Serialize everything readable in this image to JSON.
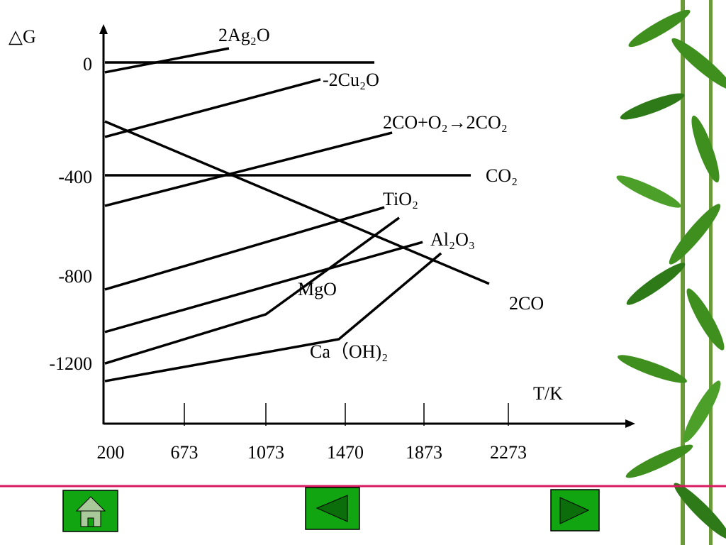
{
  "chart_data": {
    "type": "line",
    "y_label": "△G",
    "x_label": "T/K",
    "xticks": [
      200,
      673,
      1073,
      1470,
      1873,
      2273
    ],
    "yticks": [
      0,
      -400,
      -800,
      -1200
    ],
    "color": "#000000",
    "series": [
      {
        "name": "2Ag₂O",
        "x": [
          200,
          892
        ],
        "values": [
          -35,
          50
        ]
      },
      {
        "x": [
          200,
          1619
        ],
        "values": [
          0,
          0
        ]
      },
      {
        "name": "-2Cu₂O",
        "x": [
          200,
          1346
        ],
        "values": [
          -264,
          -60
        ]
      },
      {
        "name": "2CO+O₂→2CO₂",
        "x": [
          200,
          1710
        ],
        "values": [
          -523,
          -249
        ]
      },
      {
        "name": "CO₂",
        "x": [
          200,
          2095
        ],
        "values": [
          -400,
          -400
        ]
      },
      {
        "name": "2CO",
        "x": [
          200,
          2182
        ],
        "values": [
          -209,
          -842
        ]
      },
      {
        "name": "TiO₂",
        "x": [
          200,
          1670
        ],
        "values": [
          -868,
          -529
        ]
      },
      {
        "name": "Al₂O₃",
        "x": [
          200,
          1866
        ],
        "values": [
          -1063,
          -669
        ]
      },
      {
        "name": "MgO",
        "x": [
          200,
          1073,
          1746
        ],
        "values": [
          -1207,
          -982,
          -571
        ]
      },
      {
        "name": "Ca（OH)₂",
        "x": [
          200,
          1438,
          1954
        ],
        "values": [
          -1288,
          -1096,
          -714
        ]
      }
    ]
  }
}
